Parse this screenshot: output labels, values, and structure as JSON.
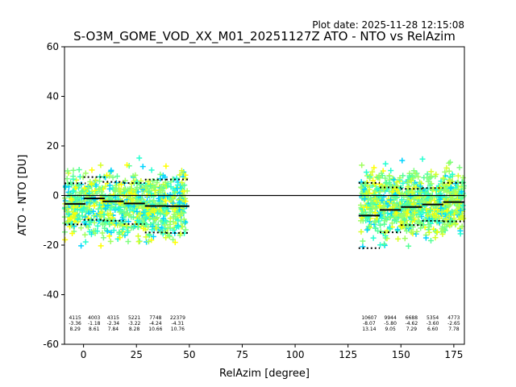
{
  "plot_date": "Plot date: 2025-11-28 12:15:08",
  "chart_data": {
    "type": "scatter",
    "title": "S-O3M_GOME_VOD_XX_M01_20251127Z ATO - NTO vs RelAzim",
    "xlabel": "RelAzim [degree]",
    "ylabel": "ATO - NTO [DU]",
    "xlim": [
      -9,
      180
    ],
    "ylim": [
      -60,
      60
    ],
    "xticks": [
      0,
      25,
      50,
      75,
      100,
      125,
      150,
      175
    ],
    "yticks": [
      -60,
      -40,
      -20,
      0,
      20,
      40,
      60
    ],
    "zero_line": 0,
    "point_colors": [
      "#7fff7f",
      "#55ff99",
      "#9fff5f",
      "#d6ff29",
      "#ffff00",
      "#00d4ff",
      "#26ffd0",
      "#ffc400",
      "#0029ff",
      "#00a4ff"
    ],
    "point_clusters": [
      {
        "x_range": [
          -9,
          49
        ],
        "y_center": -4,
        "spread": 12,
        "count": 900
      },
      {
        "x_range": [
          131,
          180
        ],
        "y_center": -3,
        "spread": 12,
        "count": 900
      }
    ],
    "bins": [
      {
        "x_range": [
          -9,
          1
        ],
        "count": "4115",
        "mean": "-3.36",
        "std": "8.29",
        "mean_value": -3.36,
        "std_value": 8.29
      },
      {
        "x_range": [
          0,
          10
        ],
        "count": "4003",
        "mean": "-1.18",
        "std": "8.61",
        "mean_value": -1.18,
        "std_value": 8.61
      },
      {
        "x_range": [
          9,
          19
        ],
        "count": "4315",
        "mean": "-2.34",
        "std": "7.84",
        "mean_value": -2.34,
        "std_value": 7.84
      },
      {
        "x_range": [
          19,
          29
        ],
        "count": "5221",
        "mean": "-3.22",
        "std": "8.28",
        "mean_value": -3.22,
        "std_value": 8.28
      },
      {
        "x_range": [
          29,
          39
        ],
        "count": "7748",
        "mean": "-4.24",
        "std": "10.66",
        "mean_value": -4.24,
        "std_value": 10.66
      },
      {
        "x_range": [
          39,
          50
        ],
        "count": "22379",
        "mean": "-4.31",
        "std": "10.76",
        "mean_value": -4.31,
        "std_value": 10.76
      },
      {
        "x_range": [
          130,
          140
        ],
        "count": "10607",
        "mean": "-8.07",
        "std": "13.14",
        "mean_value": -8.07,
        "std_value": 13.14
      },
      {
        "x_range": [
          140,
          150
        ],
        "count": "9944",
        "mean": "-5.80",
        "std": "9.05",
        "mean_value": -5.8,
        "std_value": 9.05
      },
      {
        "x_range": [
          150,
          160
        ],
        "count": "6688",
        "mean": "-4.62",
        "std": "7.29",
        "mean_value": -4.62,
        "std_value": 7.29
      },
      {
        "x_range": [
          160,
          170
        ],
        "count": "5354",
        "mean": "-3.60",
        "std": "6.60",
        "mean_value": -3.6,
        "std_value": 6.6
      },
      {
        "x_range": [
          170,
          180
        ],
        "count": "4773",
        "mean": "-2.65",
        "std": "7.78",
        "mean_value": -2.65,
        "std_value": 7.78
      }
    ]
  }
}
